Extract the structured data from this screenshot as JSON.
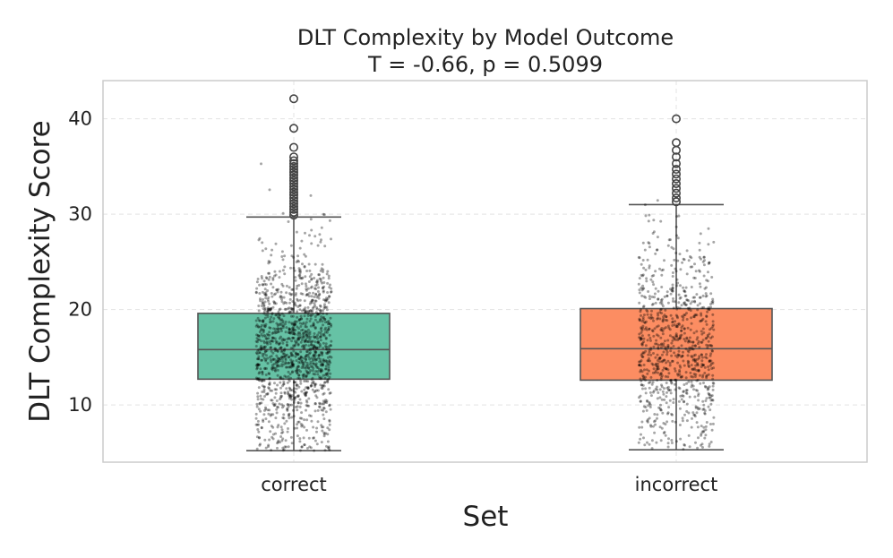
{
  "chart_data": {
    "type": "boxplot",
    "title": "DLT Complexity by Model Outcome",
    "subtitle": "T = -0.66, p = 0.5099",
    "xlabel": "Set",
    "ylabel": "DLT Complexity Score",
    "ylim": [
      4,
      44
    ],
    "yticks": [
      10,
      20,
      30,
      40
    ],
    "grid": true,
    "categories": [
      "correct",
      "incorrect"
    ],
    "series": [
      {
        "category": "correct",
        "color": "#66c2a5",
        "whisker_low": 5.2,
        "q1": 12.7,
        "median": 15.8,
        "q3": 19.6,
        "whisker_high": 29.7,
        "outliers": [
          29.9,
          30.2,
          30.5,
          30.8,
          31.1,
          31.4,
          31.7,
          32.0,
          32.3,
          32.6,
          32.9,
          33.2,
          33.5,
          33.8,
          34.1,
          34.4,
          34.7,
          35.0,
          35.3,
          35.6,
          36.0,
          37.0,
          39.0,
          42.1
        ],
        "points_count": 1400
      },
      {
        "category": "incorrect",
        "color": "#fc8d62",
        "whisker_low": 5.3,
        "q1": 12.6,
        "median": 15.9,
        "q3": 20.1,
        "whisker_high": 31.0,
        "outliers": [
          31.3,
          31.7,
          32.2,
          32.7,
          33.2,
          33.7,
          34.2,
          34.7,
          35.3,
          36.0,
          36.7,
          37.5,
          40.0
        ],
        "points_count": 900
      }
    ]
  }
}
